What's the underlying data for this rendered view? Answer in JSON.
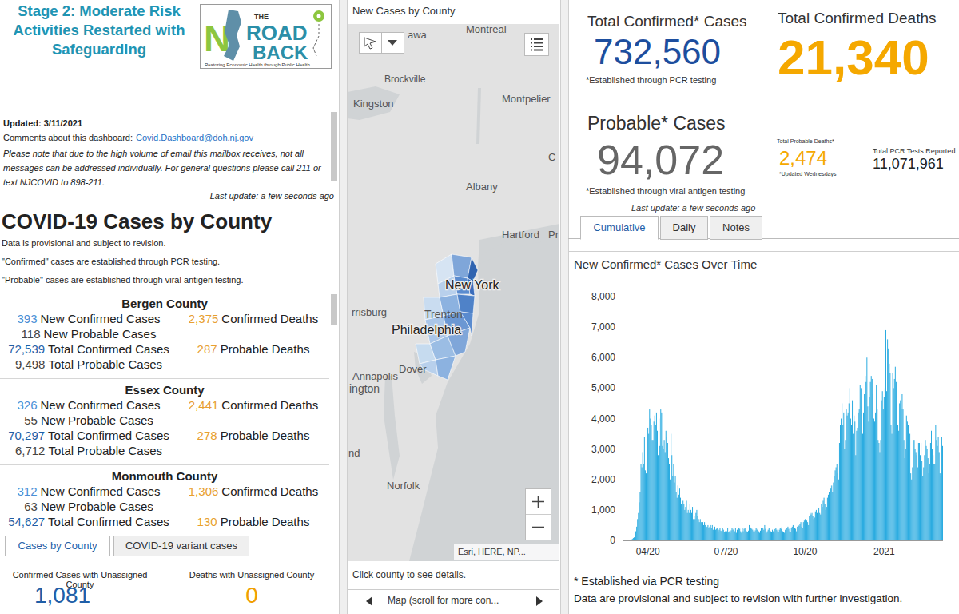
{
  "header": {
    "title": "Stage 2: Moderate Risk Activities Restarted with Safeguarding",
    "logo": {
      "mark": "N",
      "the": "THE",
      "road": "ROAD",
      "back": "BACK",
      "tagline": "Restoring Economic Health through Public Health"
    }
  },
  "info": {
    "updated": "Updated: 3/11/2021",
    "comments_label": "Comments about this dashboard:",
    "email": "Covid.Dashboard@doh.nj.gov",
    "note": "Please note that due to the high volume of email this mailbox receives, not all messages can be addressed individually. For general questions please call 211 or text NJCOVID to 898-211.",
    "last_update": "Last update: a few seconds ago"
  },
  "county_panel": {
    "title": "COVID-19 Cases by County",
    "notes": [
      "Data is provisional and subject to revision.",
      "\"Confirmed\" cases are established through PCR testing.",
      "\"Probable\" cases are established through viral antigen testing."
    ]
  },
  "county_labels": {
    "new_confirmed": "New Confirmed Cases",
    "confirmed_deaths": "Confirmed Deaths",
    "new_probable": "New Probable Cases",
    "total_confirmed": "Total Confirmed Cases",
    "probable_deaths": "Probable Deaths",
    "total_probable": "Total Probable Cases"
  },
  "counties": [
    {
      "name": "Bergen County",
      "new_confirmed": "393",
      "confirmed_deaths": "2,375",
      "new_probable": "118",
      "total_confirmed": "72,539",
      "probable_deaths": "287",
      "total_probable": "9,498"
    },
    {
      "name": "Essex County",
      "new_confirmed": "326",
      "confirmed_deaths": "2,441",
      "new_probable": "55",
      "total_confirmed": "70,297",
      "probable_deaths": "278",
      "total_probable": "6,712"
    },
    {
      "name": "Monmouth County",
      "new_confirmed": "312",
      "confirmed_deaths": "1,306",
      "new_probable": "63",
      "total_confirmed": "54,627",
      "probable_deaths": "130"
    }
  ],
  "county_tabs": [
    "Cases by County",
    "COVID-19 variant cases"
  ],
  "unassigned": {
    "cases_label": "Confirmed Cases with Unassigned County",
    "cases": "1,081",
    "deaths_label": "Deaths with Unassigned County",
    "deaths": "0"
  },
  "map": {
    "title": "New Cases by County",
    "places": [
      "awa",
      "Montreal",
      "Brockville",
      "Kingston",
      "Montpelier",
      "Albany",
      "Hartford",
      "Pr",
      "C",
      "New York",
      "Trenton",
      "Philadelphia",
      "rrisburg",
      "Annapolis",
      "ington",
      "Dover",
      "nd",
      "Norfolk"
    ],
    "attribution": "Esri, HERE, NP...",
    "footer": "Click county to see details.",
    "nav": "Map (scroll for more con..."
  },
  "stats": {
    "confirmed_label": "Total Confirmed* Cases",
    "confirmed": "732,560",
    "confirmed_note": "*Established through PCR testing",
    "deaths_label": "Total Confirmed Deaths",
    "deaths": "21,340",
    "probable_label": "Probable* Cases",
    "probable": "94,072",
    "probable_note": "*Established through viral antigen testing",
    "probable_deaths_label": "Total Probable Deaths*",
    "probable_deaths": "2,474",
    "probable_deaths_note": "*Updated Wednesdays",
    "pcr_label": "Total PCR Tests Reported",
    "pcr": "11,071,961",
    "last_update": "Last update: a few seconds ago"
  },
  "chart_tabs": [
    "Cumulative",
    "Daily",
    "Notes"
  ],
  "chart_data": {
    "type": "bar",
    "title": "New Confirmed* Cases Over Time",
    "color": "#1fa7df",
    "grid": false,
    "ylim": [
      0,
      8000
    ],
    "yticks": [
      0,
      {
        "value": 1000,
        "label": "1,000"
      },
      {
        "value": 2000,
        "label": "2,000"
      },
      {
        "value": 3000,
        "label": "3,000"
      },
      {
        "value": 4000,
        "label": "4,000"
      },
      {
        "value": 5000,
        "label": "5,000"
      },
      {
        "value": 6000,
        "label": "6,000"
      },
      {
        "value": 7000,
        "label": "7,000"
      },
      {
        "value": 8000,
        "label": "8,000"
      }
    ],
    "categories": [
      null,
      null,
      null,
      null,
      null,
      null,
      null,
      null,
      null,
      null,
      null,
      null,
      null,
      null,
      null,
      null,
      null,
      null,
      null,
      null,
      null,
      null,
      null,
      null,
      null,
      null,
      null,
      null,
      "04/20",
      null,
      null,
      null,
      null,
      null,
      null,
      null,
      null,
      null,
      null,
      null,
      null,
      null,
      null,
      null,
      null,
      null,
      null,
      null,
      null,
      null,
      null,
      null,
      null,
      null,
      null,
      null,
      null,
      null,
      null,
      null,
      null,
      null,
      null,
      null,
      null,
      null,
      null,
      null,
      null,
      null,
      null,
      null,
      null,
      null,
      null,
      null,
      null,
      null,
      null,
      null,
      null,
      null,
      null,
      null,
      null,
      null,
      null,
      null,
      null,
      null,
      null,
      null,
      null,
      null,
      null,
      null,
      null,
      null,
      null,
      null,
      null,
      null,
      null,
      null,
      null,
      null,
      null,
      null,
      null,
      null,
      null,
      null,
      null,
      null,
      null,
      null,
      null,
      null,
      null,
      "07/20",
      null,
      null,
      null,
      null,
      null,
      null,
      null,
      null,
      null,
      null,
      null,
      null,
      null,
      null,
      null,
      null,
      null,
      null,
      null,
      null,
      null,
      null,
      null,
      null,
      null,
      null,
      null,
      null,
      null,
      null,
      null,
      null,
      null,
      null,
      null,
      null,
      null,
      null,
      null,
      null,
      null,
      null,
      null,
      null,
      null,
      null,
      null,
      null,
      null,
      null,
      null,
      null,
      null,
      null,
      null,
      null,
      null,
      null,
      null,
      null,
      null,
      null,
      null,
      null,
      null,
      null,
      null,
      null,
      null,
      null,
      null,
      null,
      null,
      null,
      null,
      null,
      null,
      null,
      null,
      null,
      null,
      null,
      null,
      null,
      null,
      null,
      null,
      null,
      null,
      null,
      null,
      "10/20",
      null,
      null,
      null,
      null,
      null,
      null,
      null,
      null,
      null,
      null,
      null,
      null,
      null,
      null,
      null,
      null,
      null,
      null,
      null,
      null,
      null,
      null,
      null,
      null,
      null,
      null,
      null,
      null,
      null,
      null,
      null,
      null,
      null,
      null,
      null,
      null,
      null,
      null,
      null,
      null,
      null,
      null,
      null,
      null,
      null,
      null,
      null,
      null,
      null,
      null,
      null,
      null,
      null,
      null,
      null,
      null,
      null,
      null,
      null,
      null,
      null,
      null,
      null,
      null,
      null,
      null,
      null,
      null,
      null,
      null,
      null,
      null,
      null,
      null,
      null,
      null,
      null,
      null,
      null,
      null,
      null,
      null,
      null,
      null,
      null,
      null,
      null,
      null,
      null,
      null,
      null,
      "2021",
      null,
      null,
      null,
      null,
      null,
      null,
      null,
      null,
      null,
      null,
      null,
      null,
      null,
      null,
      null,
      null,
      null,
      null,
      null,
      null,
      null,
      null,
      null,
      null,
      null,
      null,
      null,
      null,
      null,
      null,
      null,
      null,
      null,
      null,
      null,
      null,
      null,
      null,
      null,
      null,
      null,
      null,
      null,
      null,
      null,
      null,
      null,
      null,
      null,
      null,
      null,
      null,
      null,
      null,
      null,
      null,
      null,
      null,
      null,
      null,
      null,
      null,
      null,
      null,
      null,
      null,
      null,
      null
    ],
    "values": [
      1,
      2,
      2,
      5,
      5,
      8,
      12,
      20,
      25,
      30,
      50,
      80,
      100,
      170,
      300,
      450,
      700,
      900,
      1250,
      1600,
      2500,
      2400,
      2900,
      2500,
      3400,
      2300,
      2200,
      3500,
      3700,
      3500,
      4300,
      4000,
      3800,
      3300,
      3300,
      3900,
      4100,
      3800,
      4200,
      3600,
      2800,
      4000,
      3100,
      4300,
      4200,
      3100,
      3000,
      3300,
      2900,
      3600,
      3400,
      3200,
      2700,
      2500,
      2000,
      3500,
      2800,
      2100,
      2500,
      1900,
      2100,
      1600,
      1400,
      1800,
      1500,
      1700,
      1400,
      1200,
      1100,
      1300,
      1200,
      1000,
      1100,
      1300,
      900,
      1000,
      900,
      1200,
      1000,
      900,
      1100,
      700,
      800,
      700,
      900,
      1000,
      800,
      700,
      600,
      700,
      600,
      500,
      600,
      500,
      600,
      500,
      400,
      450,
      500,
      400,
      450,
      500,
      400,
      500,
      350,
      400,
      450,
      350,
      380,
      420,
      300,
      350,
      400,
      320,
      300,
      400,
      350,
      280,
      300,
      350,
      300,
      400,
      260,
      300,
      250,
      330,
      400,
      350,
      380,
      300,
      420,
      250,
      350,
      500,
      400,
      380,
      300,
      250,
      420,
      300,
      380,
      400,
      350,
      300,
      280,
      320,
      500,
      450,
      420,
      380,
      350,
      300,
      280,
      330,
      400,
      350,
      380,
      300,
      250,
      320,
      400,
      300,
      420,
      350,
      500,
      380,
      250,
      300,
      350,
      400,
      320,
      300,
      280,
      350,
      300,
      250,
      370,
      400,
      350,
      300,
      280,
      350,
      400,
      380,
      450,
      300,
      280,
      250,
      350,
      400,
      420,
      450,
      380,
      300,
      280,
      400,
      450,
      500,
      430,
      420,
      380,
      300,
      450,
      500,
      480,
      550,
      600,
      450,
      400,
      600,
      650,
      700,
      750,
      650,
      600,
      500,
      800,
      900,
      850,
      900,
      800,
      700,
      750,
      950,
      1000,
      900,
      1100,
      1050,
      900,
      850,
      1200,
      1100,
      1300,
      1400,
      1200,
      1000,
      1100,
      1400,
      1500,
      1600,
      1800,
      1700,
      1800,
      1600,
      1900,
      2100,
      2300,
      2400,
      2500,
      2200,
      2000,
      3200,
      3800,
      4000,
      4500,
      3800,
      4200,
      3000,
      3300,
      4300,
      4100,
      4200,
      4500,
      5000,
      4000,
      3800,
      4600,
      3500,
      4100,
      3900,
      2800,
      3600,
      3700,
      4200,
      4300,
      5100,
      5000,
      4400,
      3500,
      4200,
      4800,
      5400,
      5200,
      6000,
      4400,
      3900,
      4700,
      5200,
      5400,
      5300,
      4800,
      4000,
      3900,
      4200,
      5100,
      4300,
      3300,
      3200,
      2900,
      3300,
      4600,
      4900,
      4300,
      4700,
      5000,
      6900,
      4900,
      6600,
      6300,
      5800,
      5500,
      3800,
      3500,
      5500,
      5000,
      5300,
      5700,
      5200,
      4100,
      3800,
      3600,
      4500,
      4600,
      4300,
      4800,
      4300,
      3300,
      2700,
      3000,
      4100,
      3900,
      3800,
      4400,
      3500,
      2200,
      2000,
      2400,
      3300,
      3300,
      3000,
      2900,
      2800,
      2400,
      3200,
      3200,
      2800,
      3200,
      2600,
      2100,
      2400,
      2800,
      3300,
      3100,
      3000,
      2700,
      2200,
      2500,
      3200,
      3600,
      3000,
      2800,
      2500,
      2500,
      3800,
      3300,
      3100,
      3400,
      2900,
      2200,
      2100,
      3400,
      3100
    ]
  },
  "chart_footer": {
    "note": "* Established via PCR testing",
    "disclaimer": "Data are provisional and subject to revision with further investigation."
  }
}
